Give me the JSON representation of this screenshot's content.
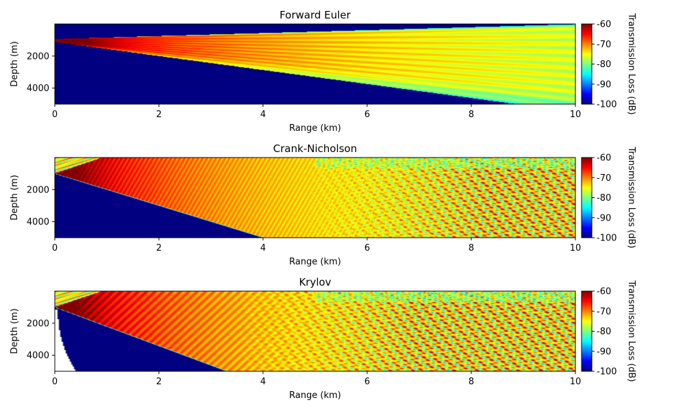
{
  "chart_data": [
    {
      "type": "heatmap",
      "title": "Forward Euler",
      "xlabel": "Range (km)",
      "ylabel": "Depth (m)",
      "colorbar_label": "Transmission Loss (dB)",
      "xlim": [
        0,
        10
      ],
      "ylim": [
        0,
        5000
      ],
      "y_inverted": true,
      "xticks": [
        "0",
        "2",
        "4",
        "6",
        "8",
        "10"
      ],
      "yticks": [
        "2000",
        "4000"
      ],
      "clim": [
        -100,
        -60
      ],
      "cticks": [
        "-60",
        "-70",
        "-80",
        "-90",
        "-100"
      ],
      "colormap": "jet",
      "source_depth_m": 1000
    },
    {
      "type": "heatmap",
      "title": "Crank-Nicholson",
      "xlabel": "Range (km)",
      "ylabel": "Depth (m)",
      "colorbar_label": "Transmission Loss (dB)",
      "xlim": [
        0,
        10
      ],
      "ylim": [
        0,
        5000
      ],
      "y_inverted": true,
      "xticks": [
        "0",
        "2",
        "4",
        "6",
        "8",
        "10"
      ],
      "yticks": [
        "2000",
        "4000"
      ],
      "clim": [
        -100,
        -60
      ],
      "cticks": [
        "-60",
        "-70",
        "-80",
        "-90",
        "-100"
      ],
      "colormap": "jet",
      "source_depth_m": 1000
    },
    {
      "type": "heatmap",
      "title": "Krylov",
      "xlabel": "Range (km)",
      "ylabel": "Depth (m)",
      "colorbar_label": "Transmission Loss (dB)",
      "xlim": [
        0,
        10
      ],
      "ylim": [
        0,
        5000
      ],
      "y_inverted": true,
      "xticks": [
        "0",
        "2",
        "4",
        "6",
        "8",
        "10"
      ],
      "yticks": [
        "2000",
        "4000"
      ],
      "clim": [
        -100,
        -60
      ],
      "cticks": [
        "-60",
        "-70",
        "-80",
        "-90",
        "-100"
      ],
      "colormap": "jet",
      "source_depth_m": 1000
    }
  ]
}
